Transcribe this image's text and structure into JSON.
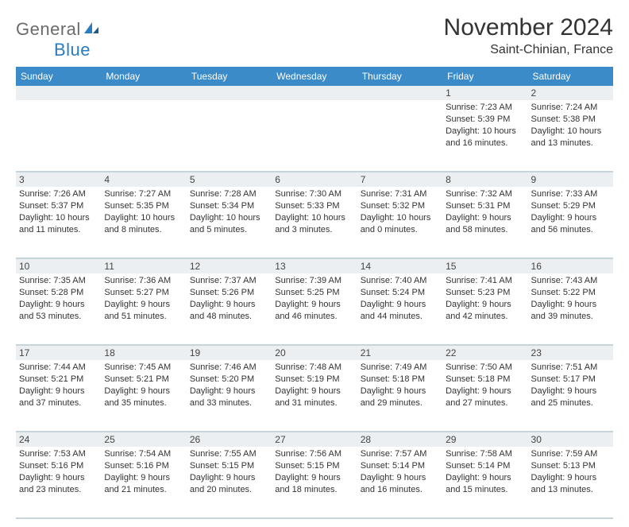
{
  "logo": {
    "word1": "General",
    "word2": "Blue"
  },
  "title": "November 2024",
  "location": "Saint-Chinian, France",
  "colors": {
    "header_bg": "#3b8bc9",
    "header_text": "#ffffff",
    "daynum_bg": "#eceff1",
    "border": "#c8d4dc",
    "logo_gray": "#6b6b6b",
    "logo_blue": "#2a7bbf"
  },
  "day_headers": [
    "Sunday",
    "Monday",
    "Tuesday",
    "Wednesday",
    "Thursday",
    "Friday",
    "Saturday"
  ],
  "weeks": [
    [
      null,
      null,
      null,
      null,
      null,
      {
        "n": "1",
        "sr": "7:23 AM",
        "ss": "5:39 PM",
        "dl": "10 hours and 16 minutes."
      },
      {
        "n": "2",
        "sr": "7:24 AM",
        "ss": "5:38 PM",
        "dl": "10 hours and 13 minutes."
      }
    ],
    [
      {
        "n": "3",
        "sr": "7:26 AM",
        "ss": "5:37 PM",
        "dl": "10 hours and 11 minutes."
      },
      {
        "n": "4",
        "sr": "7:27 AM",
        "ss": "5:35 PM",
        "dl": "10 hours and 8 minutes."
      },
      {
        "n": "5",
        "sr": "7:28 AM",
        "ss": "5:34 PM",
        "dl": "10 hours and 5 minutes."
      },
      {
        "n": "6",
        "sr": "7:30 AM",
        "ss": "5:33 PM",
        "dl": "10 hours and 3 minutes."
      },
      {
        "n": "7",
        "sr": "7:31 AM",
        "ss": "5:32 PM",
        "dl": "10 hours and 0 minutes."
      },
      {
        "n": "8",
        "sr": "7:32 AM",
        "ss": "5:31 PM",
        "dl": "9 hours and 58 minutes."
      },
      {
        "n": "9",
        "sr": "7:33 AM",
        "ss": "5:29 PM",
        "dl": "9 hours and 56 minutes."
      }
    ],
    [
      {
        "n": "10",
        "sr": "7:35 AM",
        "ss": "5:28 PM",
        "dl": "9 hours and 53 minutes."
      },
      {
        "n": "11",
        "sr": "7:36 AM",
        "ss": "5:27 PM",
        "dl": "9 hours and 51 minutes."
      },
      {
        "n": "12",
        "sr": "7:37 AM",
        "ss": "5:26 PM",
        "dl": "9 hours and 48 minutes."
      },
      {
        "n": "13",
        "sr": "7:39 AM",
        "ss": "5:25 PM",
        "dl": "9 hours and 46 minutes."
      },
      {
        "n": "14",
        "sr": "7:40 AM",
        "ss": "5:24 PM",
        "dl": "9 hours and 44 minutes."
      },
      {
        "n": "15",
        "sr": "7:41 AM",
        "ss": "5:23 PM",
        "dl": "9 hours and 42 minutes."
      },
      {
        "n": "16",
        "sr": "7:43 AM",
        "ss": "5:22 PM",
        "dl": "9 hours and 39 minutes."
      }
    ],
    [
      {
        "n": "17",
        "sr": "7:44 AM",
        "ss": "5:21 PM",
        "dl": "9 hours and 37 minutes."
      },
      {
        "n": "18",
        "sr": "7:45 AM",
        "ss": "5:21 PM",
        "dl": "9 hours and 35 minutes."
      },
      {
        "n": "19",
        "sr": "7:46 AM",
        "ss": "5:20 PM",
        "dl": "9 hours and 33 minutes."
      },
      {
        "n": "20",
        "sr": "7:48 AM",
        "ss": "5:19 PM",
        "dl": "9 hours and 31 minutes."
      },
      {
        "n": "21",
        "sr": "7:49 AM",
        "ss": "5:18 PM",
        "dl": "9 hours and 29 minutes."
      },
      {
        "n": "22",
        "sr": "7:50 AM",
        "ss": "5:18 PM",
        "dl": "9 hours and 27 minutes."
      },
      {
        "n": "23",
        "sr": "7:51 AM",
        "ss": "5:17 PM",
        "dl": "9 hours and 25 minutes."
      }
    ],
    [
      {
        "n": "24",
        "sr": "7:53 AM",
        "ss": "5:16 PM",
        "dl": "9 hours and 23 minutes."
      },
      {
        "n": "25",
        "sr": "7:54 AM",
        "ss": "5:16 PM",
        "dl": "9 hours and 21 minutes."
      },
      {
        "n": "26",
        "sr": "7:55 AM",
        "ss": "5:15 PM",
        "dl": "9 hours and 20 minutes."
      },
      {
        "n": "27",
        "sr": "7:56 AM",
        "ss": "5:15 PM",
        "dl": "9 hours and 18 minutes."
      },
      {
        "n": "28",
        "sr": "7:57 AM",
        "ss": "5:14 PM",
        "dl": "9 hours and 16 minutes."
      },
      {
        "n": "29",
        "sr": "7:58 AM",
        "ss": "5:14 PM",
        "dl": "9 hours and 15 minutes."
      },
      {
        "n": "30",
        "sr": "7:59 AM",
        "ss": "5:13 PM",
        "dl": "9 hours and 13 minutes."
      }
    ]
  ],
  "labels": {
    "sunrise": "Sunrise:",
    "sunset": "Sunset:",
    "daylight": "Daylight:"
  }
}
